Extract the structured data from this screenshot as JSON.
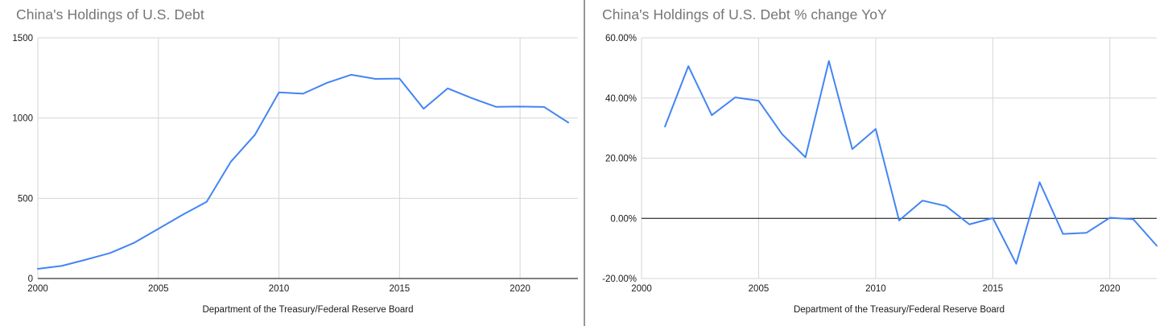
{
  "page": {
    "background_color": "#ffffff",
    "divider_color": "#979797"
  },
  "chart_data": [
    {
      "type": "line",
      "title": "China's Holdings of U.S. Debt",
      "source": "Department of the Treasury/Federal Reserve Board",
      "x": [
        2000,
        2001,
        2002,
        2003,
        2004,
        2005,
        2006,
        2007,
        2008,
        2009,
        2010,
        2011,
        2012,
        2013,
        2014,
        2015,
        2016,
        2017,
        2018,
        2019,
        2020,
        2021,
        2022
      ],
      "values": [
        60,
        79,
        118,
        159,
        223,
        310,
        397,
        478,
        727,
        895,
        1160,
        1152,
        1220,
        1270,
        1244,
        1246,
        1058,
        1185,
        1124,
        1070,
        1072,
        1069,
        972
      ],
      "xlabel": "",
      "ylabel": "",
      "xlim": [
        2000,
        2022.4
      ],
      "ylim": [
        0,
        1500
      ],
      "ytick_values": [
        0,
        500,
        1000,
        1500
      ],
      "ytick_labels": [
        "0",
        "500",
        "1000",
        "1500"
      ],
      "xtick_values": [
        2000,
        2005,
        2010,
        2015,
        2020
      ],
      "xtick_labels": [
        "2000",
        "2005",
        "2010",
        "2015",
        "2020"
      ],
      "zero_line_value": 0,
      "grid": "on",
      "legend_position": "none",
      "line_color": "#4285f4",
      "grid_color": "#d6d6d6",
      "zero_line_color": "#000000",
      "title_color": "#757575",
      "tick_label_color": "#1a1a1a"
    },
    {
      "type": "line",
      "title": "China's Holdings of U.S. Debt % change YoY",
      "source": "Department of the Treasury/Federal Reserve Board",
      "x": [
        2001,
        2002,
        2003,
        2004,
        2005,
        2006,
        2007,
        2008,
        2009,
        2010,
        2011,
        2012,
        2013,
        2014,
        2015,
        2016,
        2017,
        2018,
        2019,
        2020,
        2021,
        2022
      ],
      "values": [
        30.5,
        50.6,
        34.3,
        40.2,
        39.1,
        28.0,
        20.3,
        52.3,
        23.0,
        29.7,
        -0.7,
        5.9,
        4.1,
        -2.0,
        0.1,
        -15.1,
        12.0,
        -5.2,
        -4.8,
        0.2,
        -0.3,
        -9.1
      ],
      "xlabel": "",
      "ylabel": "",
      "xlim": [
        2000,
        2022
      ],
      "ylim": [
        -20,
        60
      ],
      "ytick_values": [
        -20,
        0,
        20,
        40,
        60
      ],
      "ytick_labels": [
        "-20.00%",
        "0.00%",
        "20.00%",
        "40.00%",
        "60.00%"
      ],
      "xtick_values": [
        2000,
        2005,
        2010,
        2015,
        2020
      ],
      "xtick_labels": [
        "2000",
        "2005",
        "2010",
        "2015",
        "2020"
      ],
      "zero_line_value": 0,
      "grid": "on",
      "legend_position": "none",
      "line_color": "#4285f4",
      "grid_color": "#d6d6d6",
      "zero_line_color": "#000000",
      "title_color": "#757575",
      "tick_label_color": "#1a1a1a"
    }
  ]
}
